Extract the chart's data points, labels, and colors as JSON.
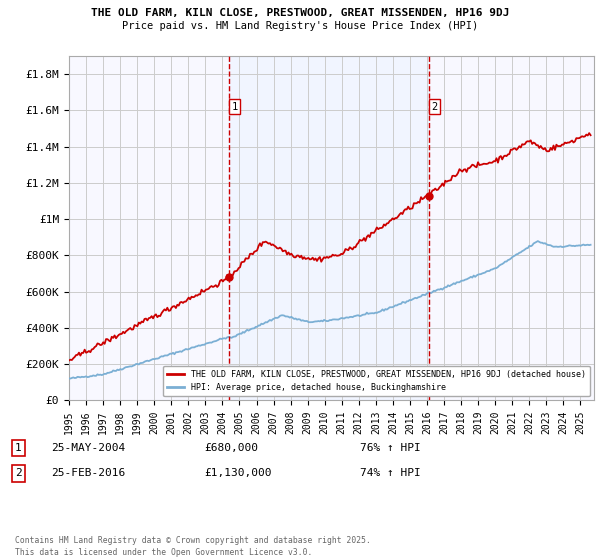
{
  "title1": "THE OLD FARM, KILN CLOSE, PRESTWOOD, GREAT MISSENDEN, HP16 9DJ",
  "title2": "Price paid vs. HM Land Registry's House Price Index (HPI)",
  "ylim": [
    0,
    1900000
  ],
  "yticks": [
    0,
    200000,
    400000,
    600000,
    800000,
    1000000,
    1200000,
    1400000,
    1600000,
    1800000
  ],
  "ytick_labels": [
    "£0",
    "£200K",
    "£400K",
    "£600K",
    "£800K",
    "£1M",
    "£1.2M",
    "£1.4M",
    "£1.6M",
    "£1.8M"
  ],
  "xmin": 1995.0,
  "xmax": 2025.8,
  "sale1_x": 2004.38,
  "sale1_y": 680000,
  "sale1_label": "25-MAY-2004",
  "sale1_price": "£680,000",
  "sale1_hpi": "76% ↑ HPI",
  "sale2_x": 2016.12,
  "sale2_y": 1130000,
  "sale2_label": "25-FEB-2016",
  "sale2_price": "£1,130,000",
  "sale2_hpi": "74% ↑ HPI",
  "red_color": "#cc0000",
  "blue_color": "#7bafd4",
  "shade_color": "#ddeeff",
  "grid_color": "#cccccc",
  "legend_label_red": "THE OLD FARM, KILN CLOSE, PRESTWOOD, GREAT MISSENDEN, HP16 9DJ (detached house)",
  "legend_label_blue": "HPI: Average price, detached house, Buckinghamshire",
  "footer": "Contains HM Land Registry data © Crown copyright and database right 2025.\nThis data is licensed under the Open Government Licence v3.0."
}
